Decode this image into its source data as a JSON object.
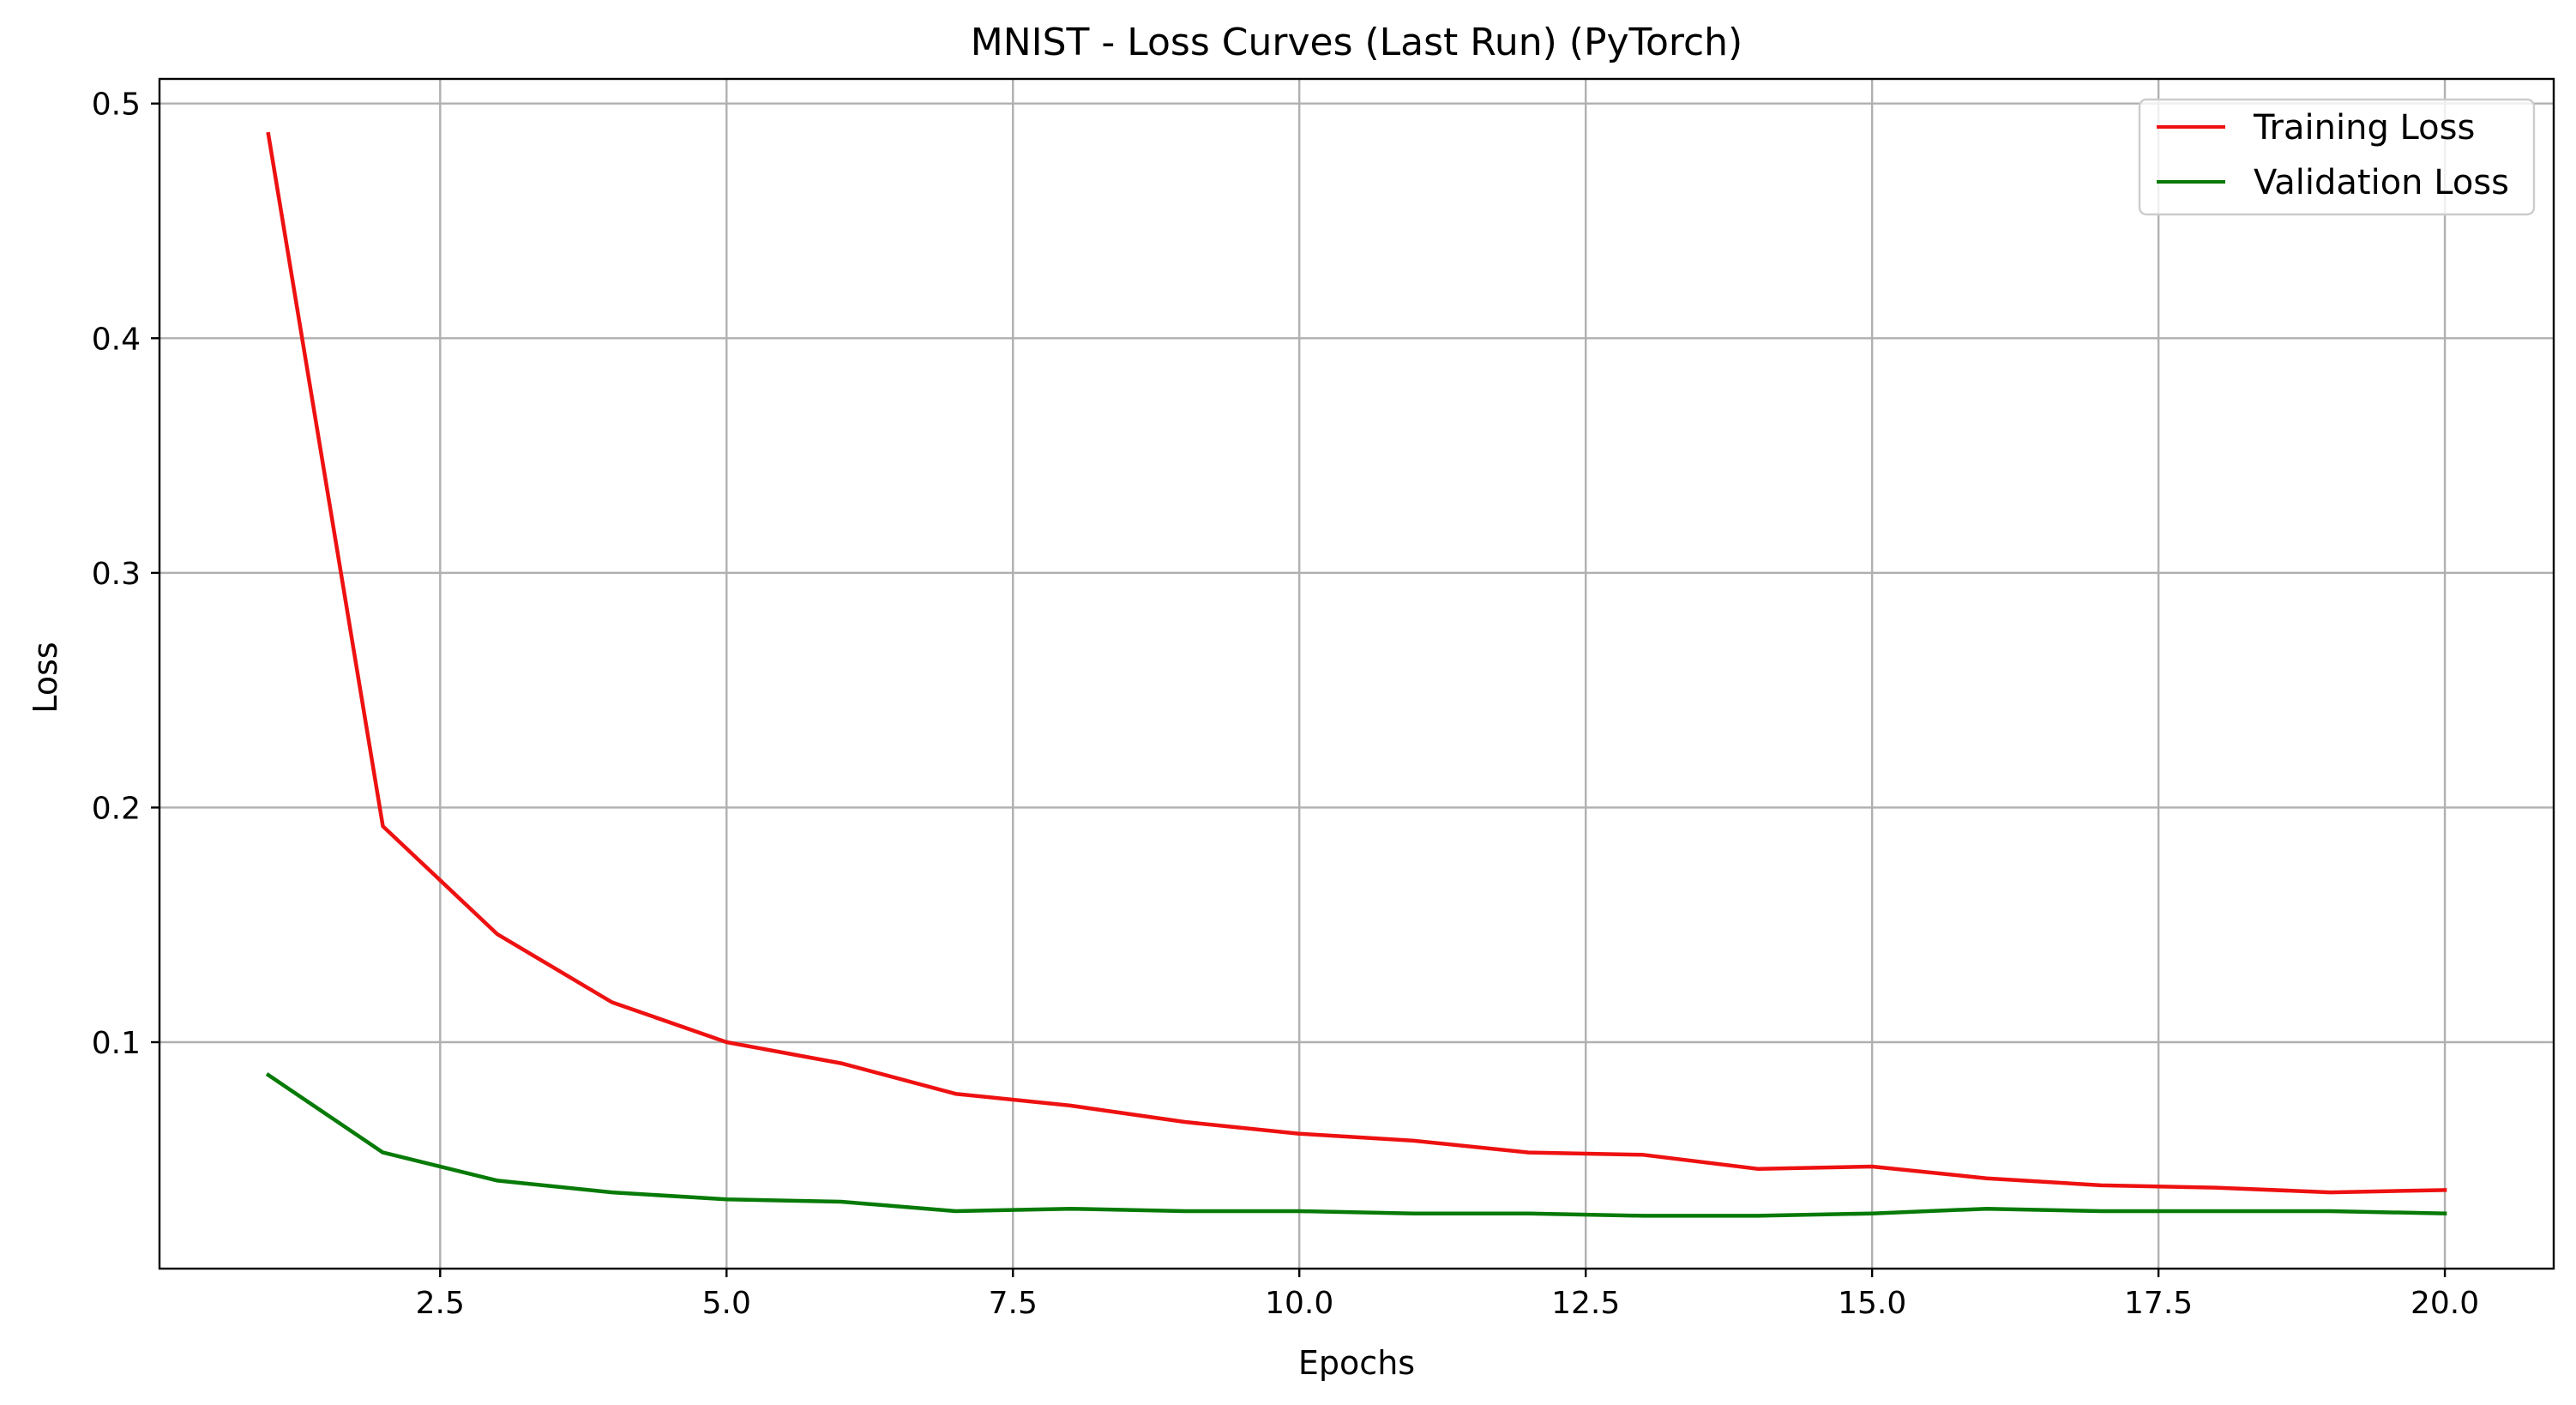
{
  "chart_data": {
    "type": "line",
    "title": "MNIST - Loss Curves (Last Run) (PyTorch)",
    "xlabel": "Epochs",
    "ylabel": "Loss",
    "xlim": [
      0.05,
      20.95
    ],
    "ylim": [
      0.0035,
      0.5105
    ],
    "x_ticks": [
      2.5,
      5.0,
      7.5,
      10.0,
      12.5,
      15.0,
      17.5,
      20.0
    ],
    "x_tick_labels": [
      "2.5",
      "5.0",
      "7.5",
      "10.0",
      "12.5",
      "15.0",
      "17.5",
      "20.0"
    ],
    "y_ticks": [
      0.1,
      0.2,
      0.3,
      0.4,
      0.5
    ],
    "y_tick_labels": [
      "0.1",
      "0.2",
      "0.3",
      "0.4",
      "0.5"
    ],
    "grid": true,
    "legend_position": "upper right",
    "x": [
      1,
      2,
      3,
      4,
      5,
      6,
      7,
      8,
      9,
      10,
      11,
      12,
      13,
      14,
      15,
      16,
      17,
      18,
      19,
      20
    ],
    "series": [
      {
        "name": "Training Loss",
        "color": "#ee1111",
        "values": [
          0.487,
          0.192,
          0.146,
          0.117,
          0.1,
          0.091,
          0.078,
          0.073,
          0.066,
          0.061,
          0.058,
          0.053,
          0.052,
          0.046,
          0.047,
          0.042,
          0.039,
          0.038,
          0.036,
          0.037
        ]
      },
      {
        "name": "Validation Loss",
        "color": "#077a07",
        "values": [
          0.086,
          0.053,
          0.041,
          0.036,
          0.033,
          0.032,
          0.028,
          0.029,
          0.028,
          0.028,
          0.027,
          0.027,
          0.026,
          0.026,
          0.027,
          0.029,
          0.028,
          0.028,
          0.028,
          0.027
        ]
      }
    ]
  }
}
